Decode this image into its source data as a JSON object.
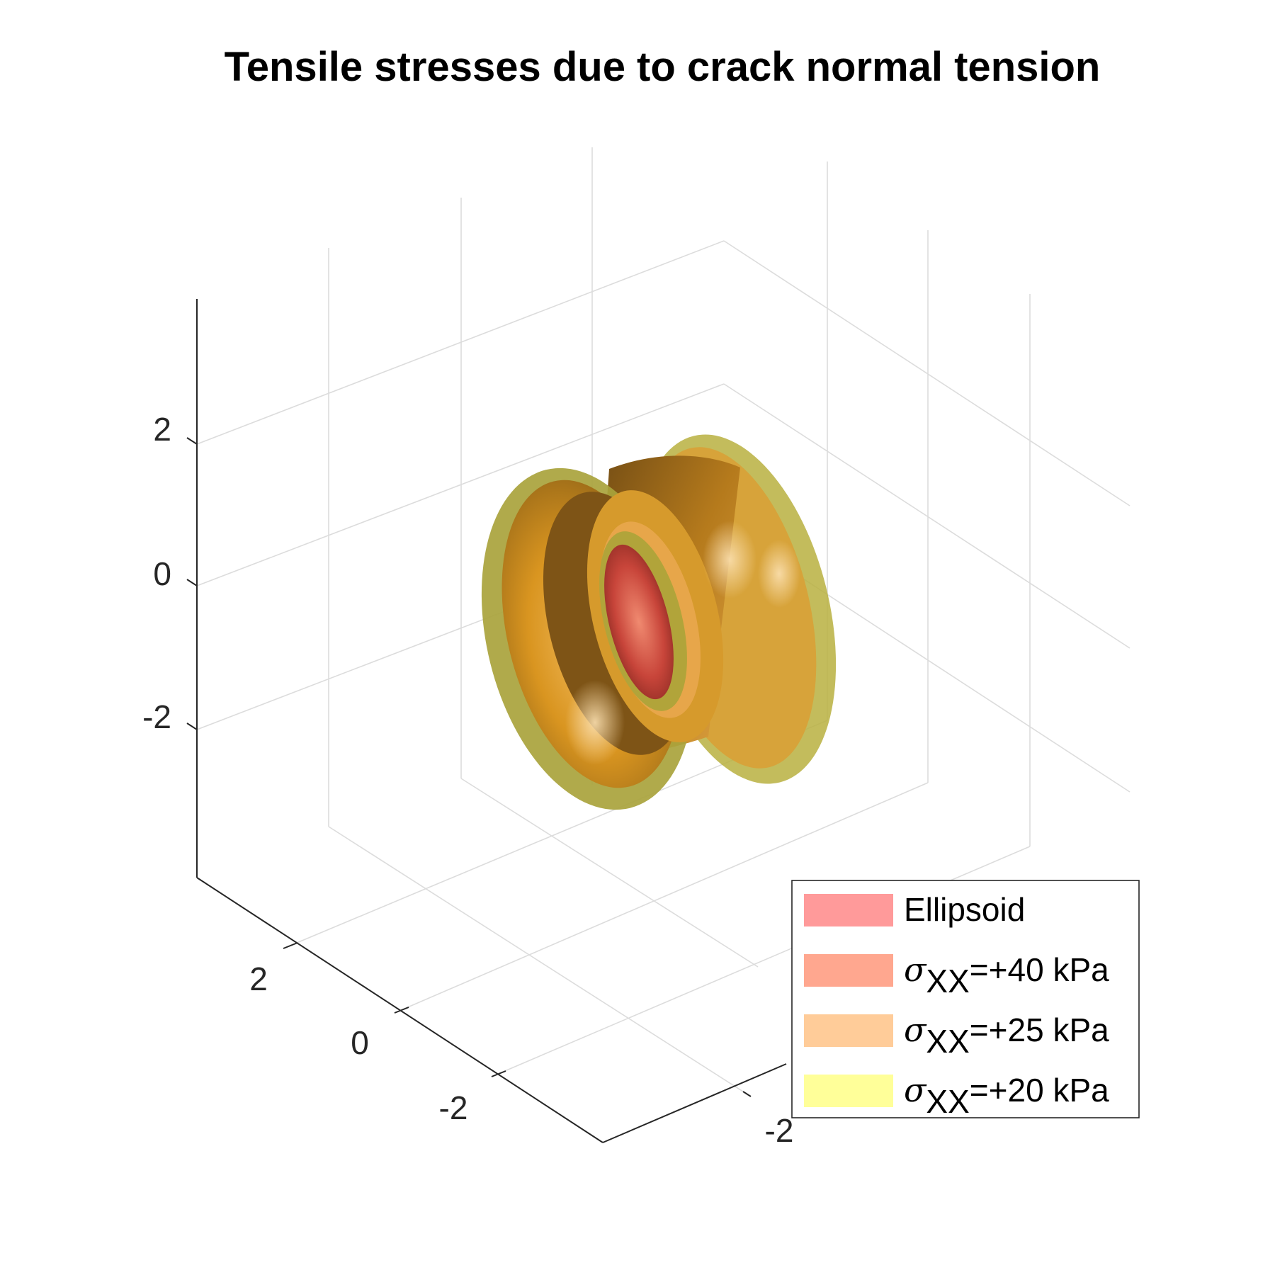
{
  "chart_data": {
    "type": "isosurface-3d",
    "title": "Tensile stresses due to crack normal tension",
    "xlabel": "",
    "ylabel": "",
    "zlabel": "",
    "axes": {
      "x": {
        "ticks": [
          2,
          0,
          -2
        ],
        "tick_labels": [
          "2",
          "0",
          "-2"
        ]
      },
      "y": {
        "ticks": [
          -2
        ],
        "tick_labels": [
          "-2"
        ]
      },
      "z": {
        "ticks": [
          2,
          0,
          -2
        ],
        "tick_labels": [
          "2",
          "0",
          "-2"
        ]
      }
    },
    "grid": true,
    "box": false,
    "legend_position": "bottom-right",
    "series": [
      {
        "name": "Ellipsoid",
        "symbol": "",
        "subscript": "",
        "suffix": "",
        "value_kpa": null,
        "color": "#ff9a9a"
      },
      {
        "name": "=+40 kPa",
        "symbol": "σ",
        "subscript": "XX",
        "suffix": "=+40 kPa",
        "value_kpa": 40,
        "color": "#ffa78f"
      },
      {
        "name": "=+25 kPa",
        "symbol": "σ",
        "subscript": "XX",
        "suffix": "=+25 kPa",
        "value_kpa": 25,
        "color": "#ffcc99"
      },
      {
        "name": "=+20 kPa",
        "symbol": "σ",
        "subscript": "XX",
        "suffix": "=+20 kPa",
        "value_kpa": 20,
        "color": "#ffff99"
      }
    ],
    "surface_colors": {
      "outer_shell": "#b8b040",
      "main_body": "#d7961e",
      "dark_inner": "#7e5416",
      "highlight": "#f2c27a",
      "core": "#c8453a"
    }
  }
}
